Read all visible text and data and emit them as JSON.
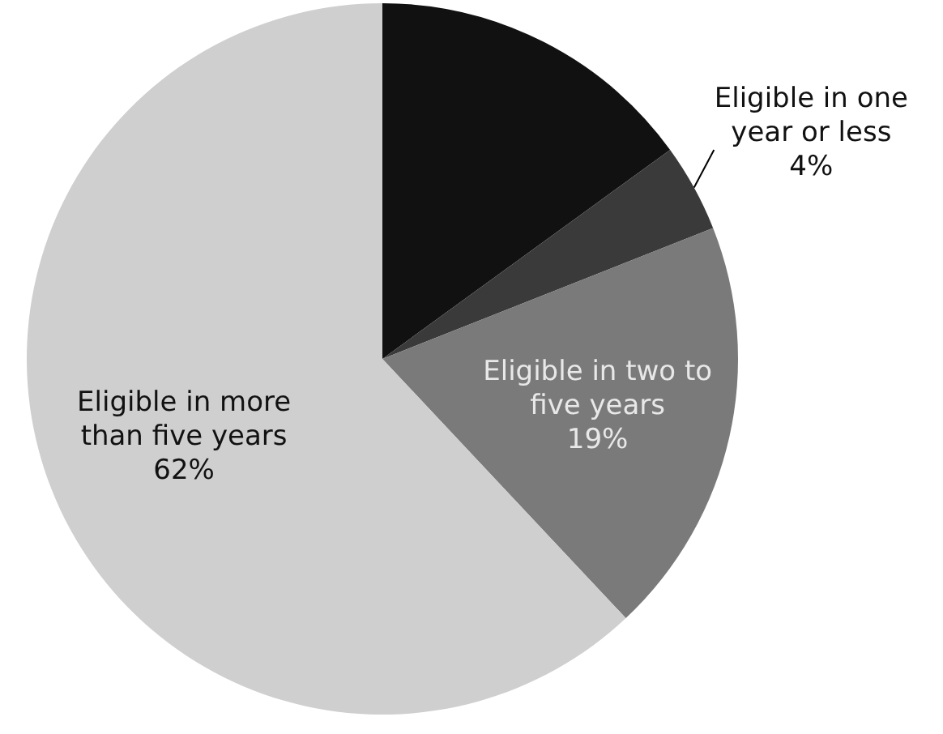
{
  "chart_data": {
    "type": "pie",
    "categories": [
      null,
      "Eligible in one year or less",
      "Eligible in two to five years",
      "Eligible in more than five years"
    ],
    "values": [
      15,
      4,
      19,
      62
    ],
    "colors": [
      "#111111",
      "#3a3a3a",
      "#7a7a7a",
      "#cfcfcf"
    ],
    "value_labels": [
      null,
      "4%",
      "19%",
      "62%"
    ],
    "legend": false
  }
}
